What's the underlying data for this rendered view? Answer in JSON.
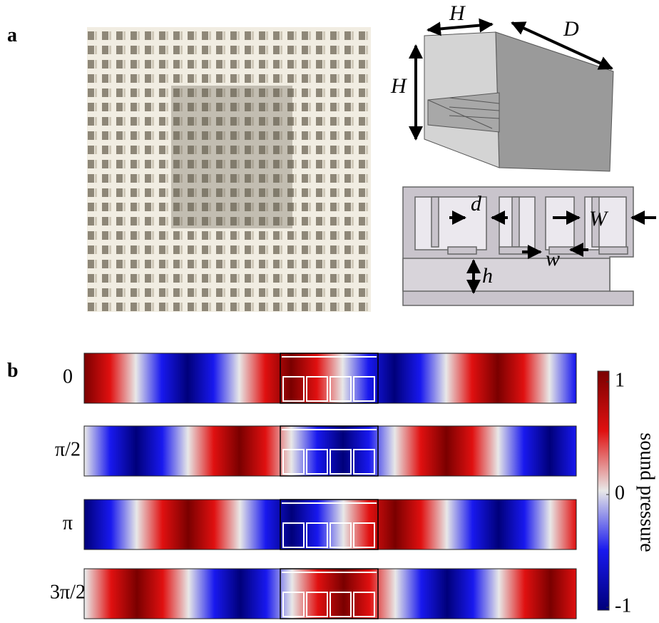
{
  "panels": {
    "a": {
      "label": "a",
      "dimensions": {
        "box_width": "H",
        "box_depth": "D",
        "box_height": "H",
        "slit": "d",
        "cell": "W",
        "neck": "w",
        "base": "h"
      }
    },
    "b": {
      "label": "b",
      "phases": [
        "0",
        "π/2",
        "π",
        "3π/2"
      ],
      "colorbar": {
        "label": "sound pressure",
        "lim": [
          -1,
          1
        ],
        "ticks": [
          1,
          0,
          -1
        ]
      }
    }
  }
}
